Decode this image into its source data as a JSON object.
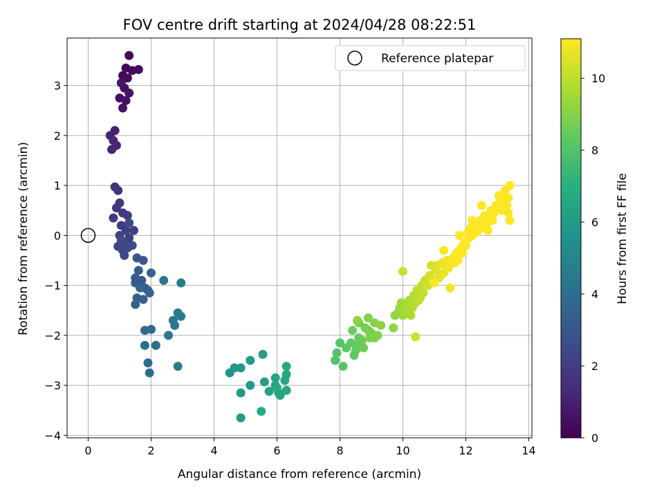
{
  "chart_data": {
    "type": "scatter",
    "title": "FOV centre drift starting at 2024/04/28 08:22:51",
    "xlabel": "Angular distance from reference (arcmin)",
    "ylabel": "Rotation from reference (arcmin)",
    "xlim": [
      -0.67,
      14.1
    ],
    "ylim": [
      -4.05,
      3.95
    ],
    "xticks": [
      0,
      2,
      4,
      6,
      8,
      10,
      12,
      14
    ],
    "yticks": [
      -4,
      -3,
      -2,
      -1,
      0,
      1,
      2,
      3
    ],
    "grid": true,
    "legend": {
      "placement": "top-right",
      "entries": [
        "Reference platepar"
      ]
    },
    "reference_point": {
      "x": 0,
      "y": 0,
      "label": "Reference platepar"
    },
    "colorbar": {
      "label": "Hours from first FF file",
      "range": [
        0,
        11.1
      ],
      "ticks": [
        0,
        2,
        4,
        6,
        8,
        10
      ],
      "colormap": "viridis"
    },
    "points": [
      [
        1.3,
        3.6,
        0.1
      ],
      [
        1.2,
        3.35,
        0.15
      ],
      [
        1.1,
        3.2,
        0.2
      ],
      [
        1.4,
        3.3,
        0.25
      ],
      [
        1.6,
        3.32,
        0.3
      ],
      [
        1.25,
        3.15,
        0.35
      ],
      [
        1.15,
        2.95,
        0.4
      ],
      [
        1.0,
        2.75,
        0.45
      ],
      [
        1.2,
        2.7,
        0.5
      ],
      [
        1.1,
        2.55,
        0.55
      ],
      [
        1.3,
        2.85,
        0.6
      ],
      [
        1.05,
        3.05,
        0.65
      ],
      [
        0.85,
        2.1,
        1.0
      ],
      [
        0.7,
        2.0,
        1.05
      ],
      [
        0.9,
        1.8,
        1.1
      ],
      [
        0.75,
        1.72,
        1.15
      ],
      [
        0.8,
        1.9,
        1.2
      ],
      [
        0.85,
        0.97,
        1.6
      ],
      [
        0.95,
        0.9,
        1.65
      ],
      [
        1.0,
        0.65,
        1.7
      ],
      [
        0.9,
        0.55,
        1.75
      ],
      [
        1.1,
        0.45,
        1.8
      ],
      [
        0.8,
        0.35,
        1.85
      ],
      [
        1.25,
        0.4,
        1.9
      ],
      [
        1.05,
        0.2,
        1.95
      ],
      [
        1.2,
        0.1,
        2.0
      ],
      [
        1.45,
        0.1,
        2.05
      ],
      [
        1.0,
        0.0,
        2.1
      ],
      [
        1.3,
        -0.05,
        2.15
      ],
      [
        1.15,
        -0.15,
        2.2
      ],
      [
        0.95,
        -0.22,
        2.25
      ],
      [
        1.1,
        -0.3,
        2.3
      ],
      [
        1.25,
        -0.25,
        2.35
      ],
      [
        1.15,
        -0.4,
        2.4
      ],
      [
        1.4,
        -0.2,
        2.45
      ],
      [
        1.3,
        0.25,
        2.5
      ],
      [
        1.05,
        -0.1,
        2.55
      ],
      [
        1.55,
        -0.45,
        3.0
      ],
      [
        1.75,
        -0.5,
        3.05
      ],
      [
        1.6,
        -0.7,
        3.1
      ],
      [
        1.5,
        -0.85,
        3.15
      ],
      [
        1.7,
        -0.9,
        3.2
      ],
      [
        1.5,
        -0.95,
        3.25
      ],
      [
        1.8,
        -1.05,
        3.3
      ],
      [
        1.9,
        -1.1,
        3.35
      ],
      [
        1.55,
        -1.25,
        3.4
      ],
      [
        1.75,
        -1.28,
        3.45
      ],
      [
        1.5,
        -1.38,
        3.5
      ],
      [
        1.95,
        -1.15,
        3.55
      ],
      [
        2.0,
        -0.75,
        3.6
      ],
      [
        1.65,
        -1.05,
        3.65
      ],
      [
        1.8,
        -1.9,
        3.8
      ],
      [
        2.0,
        -1.88,
        3.85
      ],
      [
        1.9,
        -2.55,
        3.9
      ],
      [
        1.8,
        -2.2,
        3.95
      ],
      [
        2.15,
        -2.2,
        4.0
      ],
      [
        1.95,
        -2.75,
        4.05
      ],
      [
        2.4,
        -0.9,
        4.3
      ],
      [
        2.7,
        -1.7,
        4.35
      ],
      [
        2.75,
        -1.8,
        4.4
      ],
      [
        2.55,
        -2.0,
        4.45
      ],
      [
        2.85,
        -1.55,
        4.5
      ],
      [
        2.95,
        -1.62,
        4.55
      ],
      [
        2.95,
        -0.95,
        4.6
      ],
      [
        2.85,
        -2.62,
        4.65
      ],
      [
        4.5,
        -2.75,
        5.8
      ],
      [
        4.65,
        -2.65,
        5.85
      ],
      [
        4.85,
        -2.65,
        5.9
      ],
      [
        4.85,
        -3.15,
        5.95
      ],
      [
        5.15,
        -3.0,
        6.0
      ],
      [
        4.85,
        -3.65,
        6.05
      ],
      [
        5.15,
        -2.5,
        6.1
      ],
      [
        5.55,
        -2.38,
        6.15
      ],
      [
        5.6,
        -2.93,
        6.2
      ],
      [
        5.75,
        -3.12,
        6.25
      ],
      [
        5.95,
        -3.0,
        6.3
      ],
      [
        5.95,
        -2.85,
        6.35
      ],
      [
        6.05,
        -3.15,
        6.4
      ],
      [
        6.1,
        -3.2,
        6.45
      ],
      [
        6.25,
        -2.9,
        6.5
      ],
      [
        6.3,
        -2.78,
        6.55
      ],
      [
        6.3,
        -2.62,
        6.6
      ],
      [
        6.3,
        -3.1,
        6.65
      ],
      [
        5.5,
        -3.52,
        6.7
      ],
      [
        6.0,
        -3.05,
        6.75
      ],
      [
        7.85,
        -2.5,
        8.0
      ],
      [
        7.9,
        -2.35,
        8.05
      ],
      [
        8.0,
        -2.15,
        8.1
      ],
      [
        8.1,
        -2.62,
        8.15
      ],
      [
        8.2,
        -2.25,
        8.2
      ],
      [
        8.35,
        -2.15,
        8.25
      ],
      [
        8.45,
        -2.4,
        8.3
      ],
      [
        8.5,
        -2.3,
        8.35
      ],
      [
        8.55,
        -2.2,
        8.4
      ],
      [
        8.6,
        -2.05,
        8.45
      ],
      [
        8.7,
        -2.1,
        8.5
      ],
      [
        8.75,
        -2.25,
        8.55
      ],
      [
        8.4,
        -1.9,
        8.6
      ],
      [
        8.6,
        -1.75,
        8.65
      ],
      [
        8.8,
        -1.85,
        8.7
      ],
      [
        8.9,
        -1.9,
        8.75
      ],
      [
        9.0,
        -1.95,
        8.8
      ],
      [
        8.95,
        -2.05,
        8.85
      ],
      [
        9.1,
        -2.05,
        8.9
      ],
      [
        9.2,
        -2.0,
        8.95
      ],
      [
        8.9,
        -1.65,
        9.0
      ],
      [
        9.1,
        -1.75,
        9.05
      ],
      [
        9.3,
        -1.8,
        9.1
      ],
      [
        8.55,
        -1.7,
        9.15
      ],
      [
        9.7,
        -1.85,
        9.2
      ],
      [
        9.75,
        -1.6,
        9.25
      ],
      [
        9.85,
        -1.55,
        9.3
      ],
      [
        9.9,
        -1.45,
        9.35
      ],
      [
        9.95,
        -1.35,
        9.4
      ],
      [
        10.0,
        -1.6,
        9.45
      ],
      [
        10.05,
        -1.5,
        9.5
      ],
      [
        10.1,
        -1.55,
        9.55
      ],
      [
        10.15,
        -1.4,
        9.6
      ],
      [
        10.2,
        -1.3,
        9.65
      ],
      [
        10.25,
        -1.6,
        9.7
      ],
      [
        10.3,
        -1.45,
        9.75
      ],
      [
        10.35,
        -1.2,
        9.8
      ],
      [
        10.4,
        -1.35,
        9.85
      ],
      [
        10.45,
        -1.1,
        9.9
      ],
      [
        10.5,
        -1.3,
        9.95
      ],
      [
        10.55,
        -1.25,
        10.0
      ],
      [
        10.6,
        -1.0,
        10.05
      ],
      [
        10.65,
        -1.15,
        10.1
      ],
      [
        10.7,
        -0.9,
        10.15
      ],
      [
        10.0,
        -0.72,
        10.2
      ],
      [
        10.4,
        -2.03,
        10.25
      ],
      [
        10.8,
        -1.0,
        10.3
      ],
      [
        10.85,
        -0.8,
        10.35
      ],
      [
        10.9,
        -0.6,
        10.4
      ],
      [
        11.0,
        -0.9,
        10.45
      ],
      [
        11.05,
        -0.7,
        10.5
      ],
      [
        11.1,
        -0.6,
        10.55
      ],
      [
        11.15,
        -0.85,
        10.6
      ],
      [
        11.2,
        -0.8,
        10.65
      ],
      [
        11.25,
        -0.55,
        10.7
      ],
      [
        11.3,
        -0.75,
        10.75
      ],
      [
        11.35,
        -0.6,
        10.8
      ],
      [
        11.4,
        -0.5,
        10.85
      ],
      [
        11.45,
        -0.65,
        10.9
      ],
      [
        11.5,
        -1.05,
        10.95
      ],
      [
        11.55,
        -0.5,
        11.0
      ],
      [
        11.6,
        -0.45,
        11.02
      ],
      [
        11.65,
        -0.55,
        11.04
      ],
      [
        11.7,
        -0.35,
        11.06
      ],
      [
        11.75,
        -0.5,
        11.08
      ],
      [
        11.8,
        -0.3,
        11.1
      ],
      [
        11.85,
        -0.25,
        11.1
      ],
      [
        11.9,
        -0.35,
        11.1
      ],
      [
        11.95,
        -0.15,
        11.1
      ],
      [
        12.0,
        -0.2,
        11.1
      ],
      [
        12.05,
        0.05,
        11.1
      ],
      [
        12.1,
        -0.05,
        11.1
      ],
      [
        12.15,
        0.15,
        11.1
      ],
      [
        12.2,
        0.0,
        11.1
      ],
      [
        12.25,
        0.2,
        11.1
      ],
      [
        12.3,
        0.05,
        11.1
      ],
      [
        12.35,
        0.25,
        11.1
      ],
      [
        12.4,
        0.1,
        11.1
      ],
      [
        12.45,
        0.3,
        11.1
      ],
      [
        12.5,
        0.15,
        11.1
      ],
      [
        12.55,
        0.25,
        11.1
      ],
      [
        12.6,
        0.4,
        11.1
      ],
      [
        12.65,
        0.2,
        11.1
      ],
      [
        12.7,
        0.1,
        11.1
      ],
      [
        12.75,
        0.35,
        11.1
      ],
      [
        12.8,
        0.5,
        11.1
      ],
      [
        12.85,
        0.3,
        11.1
      ],
      [
        12.9,
        0.45,
        11.1
      ],
      [
        12.95,
        0.6,
        11.1
      ],
      [
        13.0,
        0.55,
        11.1
      ],
      [
        13.05,
        0.8,
        11.1
      ],
      [
        13.1,
        0.65,
        11.1
      ],
      [
        13.15,
        0.5,
        11.1
      ],
      [
        13.2,
        0.75,
        11.1
      ],
      [
        13.25,
        0.9,
        11.1
      ],
      [
        13.3,
        0.6,
        11.1
      ],
      [
        13.35,
        0.45,
        11.1
      ],
      [
        13.4,
        0.3,
        11.1
      ],
      [
        13.35,
        0.75,
        11.1
      ],
      [
        13.4,
        1.0,
        11.1
      ],
      [
        12.2,
        0.3,
        11.1
      ],
      [
        12.5,
        0.6,
        11.1
      ],
      [
        11.8,
        0.0,
        11.1
      ],
      [
        11.0,
        -0.95,
        11.1
      ],
      [
        11.3,
        -0.3,
        11.1
      ]
    ]
  }
}
